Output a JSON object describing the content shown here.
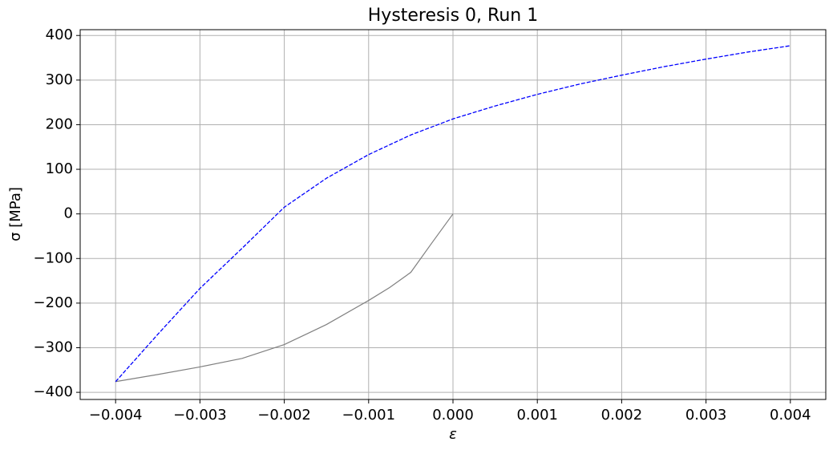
{
  "chart_data": {
    "type": "line",
    "title": "Hysteresis 0, Run 1",
    "x_label": "ε",
    "y_label": "σ [MPa]",
    "series": [
      {
        "color": "#808080",
        "linestyle": "solid",
        "x": [
          0,
          -0.00025,
          -0.0005,
          -0.00075,
          -0.001,
          -0.0015,
          -0.002,
          -0.0025,
          -0.003,
          -0.0035,
          -0.004
        ],
        "values": [
          0,
          -65,
          -131,
          -165,
          -194,
          -248,
          -293,
          -324,
          -343,
          -360,
          -376
        ]
      },
      {
        "color": "#0000ff",
        "linestyle": "dashed",
        "x": [
          -0.004,
          -0.0035,
          -0.003,
          -0.0025,
          -0.002,
          -0.0015,
          -0.001,
          -0.0005,
          0,
          0.0005,
          0.001,
          0.0015,
          0.002,
          0.0025,
          0.003,
          0.0035,
          0.004
        ],
        "values": [
          -376,
          -270,
          -167,
          -77,
          15,
          80,
          133,
          177,
          213,
          242,
          268,
          291,
          311,
          330,
          347,
          363,
          377
        ]
      }
    ],
    "xlim": [
      -0.00442,
      0.00442
    ],
    "ylim": [
      -416,
      413
    ],
    "xticks": [
      {
        "value": -0.004,
        "label": "−0.004"
      },
      {
        "value": -0.003,
        "label": "−0.003"
      },
      {
        "value": -0.002,
        "label": "−0.002"
      },
      {
        "value": -0.001,
        "label": "−0.001"
      },
      {
        "value": 0,
        "label": "0.000"
      },
      {
        "value": 0.001,
        "label": "0.001"
      },
      {
        "value": 0.002,
        "label": "0.002"
      },
      {
        "value": 0.003,
        "label": "0.003"
      },
      {
        "value": 0.004,
        "label": "0.004"
      }
    ],
    "yticks": [
      {
        "value": -400,
        "label": "−400"
      },
      {
        "value": -300,
        "label": "−300"
      },
      {
        "value": -200,
        "label": "−200"
      },
      {
        "value": -100,
        "label": "−100"
      },
      0,
      100,
      200,
      300,
      400
    ],
    "grid": true
  }
}
